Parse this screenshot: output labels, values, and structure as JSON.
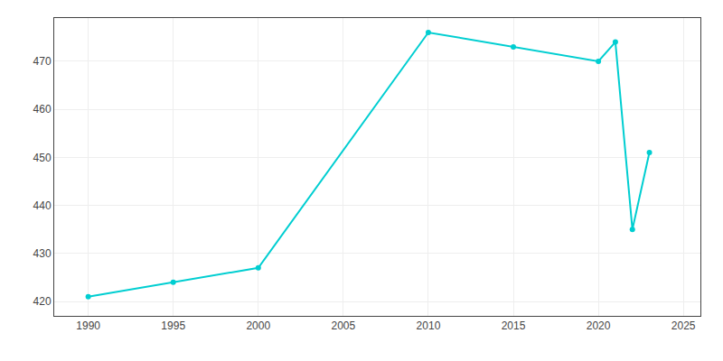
{
  "chart_data": {
    "type": "line",
    "x": [
      1990,
      1995,
      2000,
      2010,
      2015,
      2020,
      2021,
      2022,
      2023
    ],
    "values": [
      421,
      424,
      427,
      476,
      473,
      470,
      474,
      435,
      451
    ],
    "color": "#00CED1",
    "marker": "circle",
    "xlim": [
      1988,
      2026
    ],
    "ylim": [
      417,
      479
    ],
    "xticks": [
      1990,
      1995,
      2000,
      2005,
      2010,
      2015,
      2020,
      2025
    ],
    "yticks": [
      420,
      430,
      440,
      450,
      460,
      470
    ],
    "grid": true
  }
}
